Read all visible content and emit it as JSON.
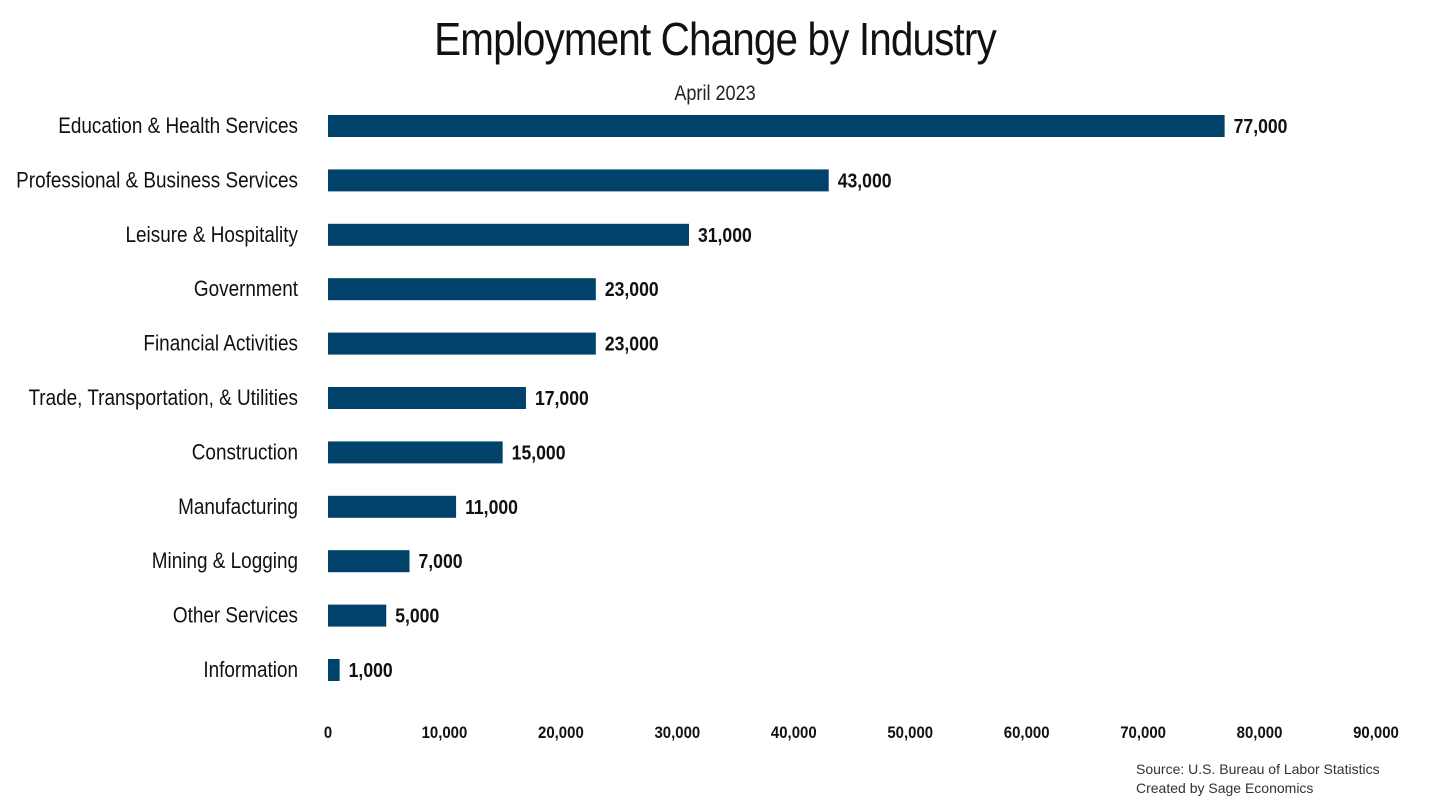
{
  "chart_data": {
    "type": "bar",
    "orientation": "horizontal",
    "title": "Employment Change by Industry",
    "subtitle": "April 2023",
    "categories": [
      "Education & Health Services",
      "Professional & Business Services",
      "Leisure & Hospitality",
      "Government",
      "Financial Activities",
      "Trade, Transportation, & Utilities",
      "Construction",
      "Manufacturing",
      "Mining & Logging",
      "Other Services",
      "Information"
    ],
    "values": [
      77000,
      43000,
      31000,
      23000,
      23000,
      17000,
      15000,
      11000,
      7000,
      5000,
      1000
    ],
    "data_labels": [
      "77,000",
      "43,000",
      "31,000",
      "23,000",
      "23,000",
      "17,000",
      "15,000",
      "11,000",
      "7,000",
      "5,000",
      "1,000"
    ],
    "xlim": [
      0,
      90000
    ],
    "x_ticks": [
      0,
      10000,
      20000,
      30000,
      40000,
      50000,
      60000,
      70000,
      80000,
      90000
    ],
    "x_tick_labels": [
      "0",
      "10,000",
      "20,000",
      "30,000",
      "40,000",
      "50,000",
      "60,000",
      "70,000",
      "80,000",
      "90,000"
    ],
    "xlabel": "",
    "ylabel": "",
    "grid": false,
    "legend": "none",
    "bar_color": "#00426a"
  },
  "source": {
    "line1": "Source: U.S. Bureau of Labor Statistics",
    "line2": "Created by Sage Economics"
  }
}
